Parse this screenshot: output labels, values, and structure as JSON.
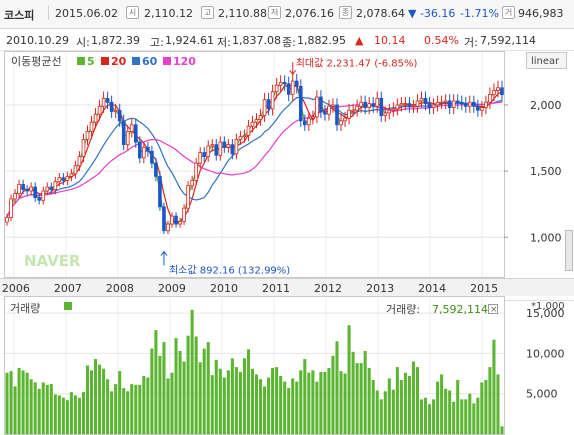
{
  "header": {
    "index_name": "코스피",
    "date": "2015.06.02",
    "open_value": "2,110.12",
    "high_value": "2,110.88",
    "low_value": "2,076.16",
    "close_value": "2,078.64",
    "change": "▼ -36.16",
    "change_pct": "-1.71%",
    "volume_value": "946,983",
    "icons": [
      "open-icon",
      "high-icon",
      "low-icon",
      "close-icon",
      "volume-icon"
    ],
    "icon_glyphs": [
      "시",
      "고",
      "저",
      "종",
      "거"
    ]
  },
  "info_bar": {
    "date": "2010.10.29",
    "open_label": "시:",
    "open": "1,872.39",
    "high_label": "고:",
    "high": "1,924.61",
    "low_label": "저:",
    "low": "1,837.08",
    "close_label": "종:",
    "close": "1,882.95",
    "close_arrow": "▲",
    "change": "10.14",
    "change_pct": "0.54%",
    "volume_label": "거:",
    "volume": "7,592,114"
  },
  "ma_legend": {
    "title": "이동평균선",
    "items": [
      {
        "label": "5",
        "color": "#5cb531"
      },
      {
        "label": "20",
        "color": "#d8261c"
      },
      {
        "label": "60",
        "color": "#2f73c4"
      },
      {
        "label": "120",
        "color": "#e83ec8"
      }
    ]
  },
  "scale_button": "linear",
  "watermark": "NAVER",
  "annotations": {
    "max": "최대값 2,231.47 (-6.85%)",
    "min": "최소값 892.16 (132.99%)"
  },
  "volume_panel": {
    "title": "거래량",
    "unit": "*1,000",
    "current_label": "거래량:",
    "current_value": "7,592,114",
    "close_glyph": "×"
  },
  "colors": {
    "up": "#d8261c",
    "down": "#1a57c7",
    "volume": "#5cb531"
  },
  "chart_data": [
    {
      "type": "candlestick",
      "title": "",
      "x": [
        "2006",
        "2007",
        "2008",
        "2009",
        "2010",
        "2011",
        "2012",
        "2013",
        "2014",
        "2015"
      ],
      "ylim": [
        700,
        2400
      ],
      "yticks": [
        1000,
        1500,
        2000
      ],
      "ytick_labels": [
        "1,000",
        "1,500",
        "2,000"
      ],
      "grid": true,
      "xstart": 2005.83,
      "xend": 2015.42,
      "closes": [
        1150,
        1290,
        1330,
        1400,
        1360,
        1350,
        1380,
        1300,
        1280,
        1350,
        1380,
        1360,
        1420,
        1450,
        1430,
        1460,
        1480,
        1540,
        1610,
        1740,
        1800,
        1870,
        1930,
        1990,
        2050,
        2020,
        1950,
        1960,
        1880,
        1700,
        1800,
        1850,
        1720,
        1600,
        1680,
        1650,
        1560,
        1460,
        1230,
        1050,
        1100,
        1160,
        1100,
        1120,
        1220,
        1390,
        1430,
        1560,
        1640,
        1610,
        1690,
        1700,
        1620,
        1720,
        1680,
        1700,
        1630,
        1740,
        1760,
        1770,
        1840,
        1870,
        1890,
        1920,
        2040,
        1970,
        2100,
        2150,
        2170,
        2160,
        2080,
        2180,
        2140,
        1880,
        1850,
        1900,
        1910,
        2060,
        1950,
        1930,
        1990,
        2000,
        1850,
        1880,
        1900,
        1960,
        1960,
        1990,
        2020,
        1980,
        2010,
        1990,
        2050,
        1920,
        1940,
        1960,
        1970,
        2000,
        2010,
        2010,
        1990,
        1990,
        2030,
        2050,
        2010,
        1980,
        2000,
        2020,
        2020,
        2030,
        1980,
        2030,
        2020,
        2010,
        1990,
        2020,
        1990,
        1960,
        1980,
        2020,
        2080,
        2110,
        2130,
        2078
      ],
      "maxima": {
        "value": 2231.47,
        "label": "최대값 2,231.47 (-6.85%)"
      },
      "minima": {
        "value": 892.16,
        "label": "최소값 892.16 (132.99%)"
      },
      "series": [
        {
          "name": "5"
        },
        {
          "name": "20"
        },
        {
          "name": "60"
        },
        {
          "name": "120"
        }
      ]
    },
    {
      "type": "bar",
      "title": "거래량",
      "ylabel": "*1,000",
      "ylim": [
        0,
        17000
      ],
      "yticks": [
        5000,
        10000,
        15000
      ],
      "ytick_labels": [
        "5,000",
        "10,000",
        "15,000"
      ],
      "values": [
        7600,
        7800,
        5900,
        8200,
        7900,
        7600,
        6800,
        6400,
        5600,
        6400,
        6100,
        6200,
        4900,
        4800,
        4500,
        4200,
        5200,
        4800,
        4500,
        5200,
        8500,
        7900,
        9300,
        8600,
        8100,
        6800,
        5300,
        6200,
        7800,
        5700,
        5300,
        6200,
        6100,
        6100,
        7200,
        7000,
        10600,
        12900,
        9700,
        11400,
        6900,
        7600,
        11900,
        10300,
        9000,
        12200,
        15400,
        12100,
        8900,
        10600,
        11400,
        7300,
        9200,
        8100,
        7000,
        7900,
        9400,
        8300,
        7700,
        9400,
        10500,
        8100,
        7400,
        6800,
        5900,
        7000,
        8200,
        8300,
        7200,
        6500,
        5700,
        6900,
        6500,
        7900,
        9300,
        7600,
        7900,
        6500,
        7700,
        7700,
        8200,
        9700,
        11500,
        7800,
        7500,
        13500,
        10200,
        8800,
        8800,
        10300,
        8200,
        6700,
        5400,
        4300,
        5300,
        6900,
        5500,
        8300,
        6700,
        7600,
        7200,
        9000,
        8300,
        4300,
        4500,
        3700,
        4300,
        6500,
        7400,
        5600,
        5400,
        4000,
        6700,
        4300,
        4300,
        5000,
        3800,
        4500,
        6400,
        6700,
        8300,
        11700,
        7400,
        950
      ]
    }
  ]
}
